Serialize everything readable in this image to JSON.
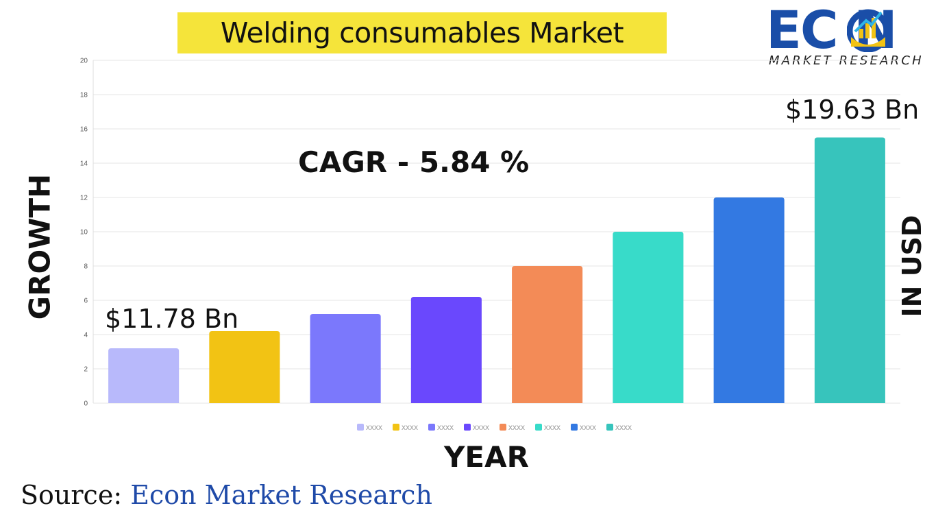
{
  "title": "Welding consumables Market",
  "logo": {
    "word": "EC  N",
    "sub": "MARKET RESEARCH"
  },
  "cagr": "CAGR  - 5.84 %",
  "annotations": {
    "start": "$11.78 Bn",
    "end": "$19.63 Bn"
  },
  "source": {
    "label": "Source:",
    "value": "Econ Market Research"
  },
  "chart_data": {
    "type": "bar",
    "xlabel": "YEAR",
    "ylabel": "GROWTH",
    "ylabel_right": "IN USD",
    "ylim": [
      0,
      20
    ],
    "yticks": [
      0,
      2,
      4,
      6,
      8,
      10,
      12,
      14,
      16,
      18,
      20
    ],
    "grid": true,
    "legend_placement": "bottom",
    "categories": [
      "XXXX",
      "XXXX",
      "XXXX",
      "XXXX",
      "XXXX",
      "XXXX",
      "XXXX",
      "XXXX"
    ],
    "values": [
      3.2,
      4.2,
      5.2,
      6.2,
      8.0,
      10.0,
      12.0,
      15.5
    ],
    "colors": [
      "#b8b9fb",
      "#f2c314",
      "#7b78fc",
      "#6a48fd",
      "#f38b57",
      "#38dbc9",
      "#3379e2",
      "#37c4bc"
    ]
  }
}
